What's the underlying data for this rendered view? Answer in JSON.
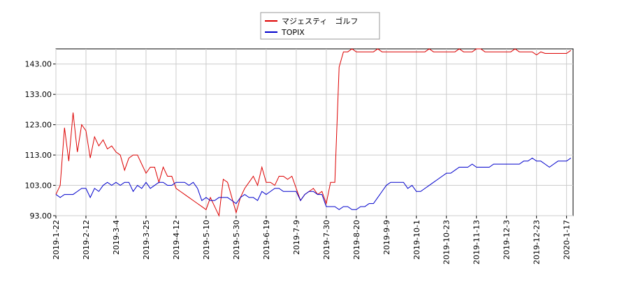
{
  "chart_data": {
    "type": "line",
    "categories": [
      "2019-1-22",
      null,
      null,
      null,
      null,
      null,
      null,
      "2019-2-12",
      null,
      null,
      null,
      null,
      null,
      null,
      "2019-3-4",
      null,
      null,
      null,
      null,
      null,
      null,
      "2019-3-25",
      null,
      null,
      null,
      null,
      null,
      null,
      "2019-4-12",
      null,
      null,
      null,
      null,
      null,
      null,
      "2019-5-10",
      null,
      null,
      null,
      null,
      null,
      null,
      "2019-5-30",
      null,
      null,
      null,
      null,
      null,
      null,
      "2019-6-19",
      null,
      null,
      null,
      null,
      null,
      null,
      "2019-7-9",
      null,
      null,
      null,
      null,
      null,
      null,
      "2019-7-30",
      null,
      null,
      null,
      null,
      null,
      null,
      "2019-8-20",
      null,
      null,
      null,
      null,
      null,
      null,
      "2019-9-9",
      null,
      null,
      null,
      null,
      null,
      null,
      "2019-10-1",
      null,
      null,
      null,
      null,
      null,
      null,
      "2019-10-23",
      null,
      null,
      null,
      null,
      null,
      null,
      "2019-11-13",
      null,
      null,
      null,
      null,
      null,
      null,
      "2019-12-3",
      null,
      null,
      null,
      null,
      null,
      null,
      "2019-12-23",
      null,
      null,
      null,
      null,
      null,
      null,
      "2020-1-17",
      null
    ],
    "series": [
      {
        "name": "マジェスティ　ゴルフ",
        "color": "#dd0000",
        "values": [
          100,
          103,
          122,
          111,
          127,
          114,
          123,
          121,
          112,
          119,
          116,
          118,
          115,
          116,
          114,
          113,
          108,
          112,
          113,
          113,
          110,
          107,
          109,
          109,
          104,
          109,
          106,
          106,
          102,
          101,
          100,
          99,
          98,
          97,
          96,
          95,
          99,
          96,
          93,
          105,
          104,
          99,
          94,
          99,
          102,
          104,
          106,
          103,
          109,
          104,
          104,
          103,
          106,
          106,
          105,
          106,
          102,
          98,
          100,
          101,
          102,
          100,
          101,
          97,
          104,
          104,
          142,
          147,
          147,
          148,
          147,
          147,
          147,
          147,
          147,
          148,
          147,
          147,
          147,
          147,
          147,
          147,
          147,
          147,
          147,
          147,
          147,
          148,
          147,
          147,
          147,
          147,
          147,
          147,
          148,
          147,
          147,
          147,
          148,
          148,
          147,
          147,
          147,
          147,
          147,
          147,
          147,
          148,
          147,
          147,
          147,
          147,
          146,
          147,
          146.5,
          146.5,
          146.5,
          146.5,
          146.5,
          146.5,
          147.5
        ]
      },
      {
        "name": "TOPIX",
        "color": "#0000cc",
        "values": [
          100,
          99,
          100,
          100,
          100,
          101,
          102,
          102,
          99,
          102,
          101,
          103,
          104,
          103,
          104,
          103,
          104,
          104,
          101,
          103,
          102,
          104,
          102,
          103,
          104,
          104,
          103,
          103,
          104,
          104,
          104,
          103,
          104,
          102,
          98,
          99,
          98,
          98,
          99,
          99,
          99,
          98,
          97,
          99,
          100,
          99,
          99,
          98,
          101,
          100,
          101,
          102,
          102,
          101,
          101,
          101,
          101,
          98,
          100,
          101,
          101,
          100,
          100,
          96,
          96,
          96,
          95,
          96,
          96,
          95,
          95,
          96,
          96,
          97,
          97,
          99,
          101,
          103,
          104,
          104,
          104,
          104,
          102,
          103,
          101,
          101,
          102,
          103,
          104,
          105,
          106,
          107,
          107,
          108,
          109,
          109,
          109,
          110,
          109,
          109,
          109,
          109,
          110,
          110,
          110,
          110,
          110,
          110,
          110,
          111,
          111,
          112,
          111,
          111,
          110,
          109,
          110,
          111,
          111,
          111,
          112
        ]
      }
    ],
    "ylim": [
      93,
      148
    ],
    "yticks": [
      {
        "value": 93,
        "label": "93.00"
      },
      {
        "value": 103,
        "label": "103.00"
      },
      {
        "value": 113,
        "label": "113.00"
      },
      {
        "value": 123,
        "label": "123.00"
      },
      {
        "value": 133,
        "label": "133.00"
      },
      {
        "value": 143,
        "label": "143.00"
      }
    ],
    "grid": true,
    "legend": "top"
  }
}
